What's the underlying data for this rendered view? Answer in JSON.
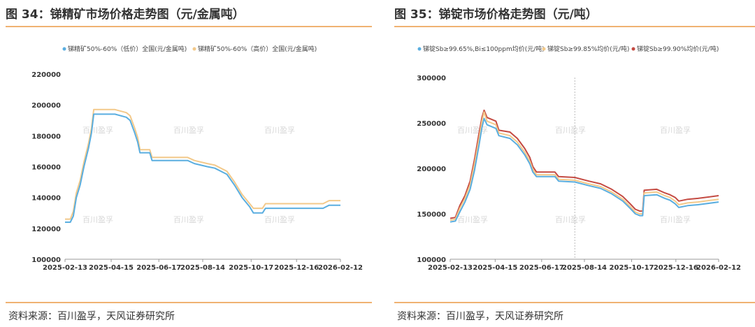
{
  "charts": [
    {
      "title": "图 34：锑精矿市场价格走势图（元/金属吨）",
      "source": "资料来源：百川盈孚，天风证券研究所",
      "watermark": "百川盈孚",
      "chart_data": {
        "type": "line",
        "ylim": [
          100000,
          220000
        ],
        "yticks": [
          "100000",
          "120000",
          "140000",
          "160000",
          "180000",
          "200000",
          "220000"
        ],
        "xlim": [
          "2025-02-13",
          "2026-02-12"
        ],
        "xticks": [
          "2025-02-13",
          "2025-04-15",
          "2025-06-17",
          "2025-08-14",
          "2025-10-17",
          "2025-12-16",
          "2026-02-12"
        ],
        "grid": false,
        "legend_position": "top",
        "series": [
          {
            "name": "锑精矿50%-60%（低价）全国(元/金属吨)",
            "color": "#5aaee0",
            "points": [
              [
                "2025-02-13",
                124000
              ],
              [
                "2025-02-20",
                124000
              ],
              [
                "2025-02-24",
                128000
              ],
              [
                "2025-02-28",
                140000
              ],
              [
                "2025-03-05",
                148000
              ],
              [
                "2025-03-10",
                160000
              ],
              [
                "2025-03-16",
                172000
              ],
              [
                "2025-03-20",
                182000
              ],
              [
                "2025-03-23",
                194000
              ],
              [
                "2025-03-26",
                194000
              ],
              [
                "2025-04-20",
                194000
              ],
              [
                "2025-05-05",
                192000
              ],
              [
                "2025-05-10",
                190000
              ],
              [
                "2025-05-16",
                182000
              ],
              [
                "2025-05-20",
                176000
              ],
              [
                "2025-05-23",
                169000
              ],
              [
                "2025-06-05",
                169000
              ],
              [
                "2025-06-08",
                164000
              ],
              [
                "2025-07-10",
                164000
              ],
              [
                "2025-07-25",
                164000
              ],
              [
                "2025-08-03",
                162000
              ],
              [
                "2025-08-20",
                160000
              ],
              [
                "2025-08-30",
                159000
              ],
              [
                "2025-09-15",
                155000
              ],
              [
                "2025-09-25",
                148000
              ],
              [
                "2025-10-05",
                140000
              ],
              [
                "2025-10-15",
                134000
              ],
              [
                "2025-10-20",
                130000
              ],
              [
                "2025-11-01",
                130000
              ],
              [
                "2025-11-05",
                133000
              ],
              [
                "2025-12-10",
                133000
              ],
              [
                "2025-12-15",
                133000
              ],
              [
                "2026-01-20",
                133000
              ],
              [
                "2026-01-28",
                135000
              ],
              [
                "2026-02-12",
                135000
              ]
            ]
          },
          {
            "name": "锑精矿50%-60%（高价）全国(元/金属吨)",
            "color": "#f3c98a",
            "points": [
              [
                "2025-02-13",
                126000
              ],
              [
                "2025-02-20",
                126000
              ],
              [
                "2025-02-24",
                131000
              ],
              [
                "2025-02-28",
                143000
              ],
              [
                "2025-03-05",
                151000
              ],
              [
                "2025-03-10",
                163000
              ],
              [
                "2025-03-16",
                175000
              ],
              [
                "2025-03-20",
                185000
              ],
              [
                "2025-03-23",
                197000
              ],
              [
                "2025-03-26",
                197000
              ],
              [
                "2025-04-20",
                197000
              ],
              [
                "2025-05-05",
                195000
              ],
              [
                "2025-05-10",
                193000
              ],
              [
                "2025-05-16",
                185000
              ],
              [
                "2025-05-20",
                179000
              ],
              [
                "2025-05-23",
                171000
              ],
              [
                "2025-06-05",
                171000
              ],
              [
                "2025-06-08",
                166000
              ],
              [
                "2025-07-10",
                166000
              ],
              [
                "2025-07-25",
                166000
              ],
              [
                "2025-08-03",
                164000
              ],
              [
                "2025-08-20",
                162000
              ],
              [
                "2025-08-30",
                161000
              ],
              [
                "2025-09-15",
                157000
              ],
              [
                "2025-09-25",
                150000
              ],
              [
                "2025-10-05",
                142000
              ],
              [
                "2025-10-15",
                136000
              ],
              [
                "2025-10-20",
                133000
              ],
              [
                "2025-11-01",
                133000
              ],
              [
                "2025-11-05",
                136000
              ],
              [
                "2025-12-10",
                136000
              ],
              [
                "2025-12-15",
                136000
              ],
              [
                "2026-01-20",
                136000
              ],
              [
                "2026-01-28",
                138000
              ],
              [
                "2026-02-12",
                138000
              ]
            ]
          }
        ]
      }
    },
    {
      "title": "图 35：锑锭市场价格走势图（元/吨）",
      "source": "资料来源：百川盈孚，天风证券研究所",
      "watermark": "百川盈孚",
      "chart_data": {
        "type": "line",
        "ylim": [
          100000,
          300000
        ],
        "yticks": [
          "100000",
          "150000",
          "200000",
          "250000",
          "300000"
        ],
        "xlim": [
          "2025-02-13",
          "2026-02-12"
        ],
        "xticks": [
          "2025-02-13",
          "2025-04-15",
          "2025-06-17",
          "2025-08-14",
          "2025-10-17",
          "2025-12-16",
          "2026-02-12"
        ],
        "grid": false,
        "legend_position": "top",
        "vline": "2025-08-01",
        "series": [
          {
            "name": "锑锭Sb≥99.65%,Bi≤100ppm均价(元/吨)",
            "color": "#5aaee0",
            "points": [
              [
                "2025-02-13",
                141000
              ],
              [
                "2025-02-20",
                142000
              ],
              [
                "2025-02-26",
                152000
              ],
              [
                "2025-03-05",
                163000
              ],
              [
                "2025-03-12",
                177000
              ],
              [
                "2025-03-18",
                198000
              ],
              [
                "2025-03-24",
                225000
              ],
              [
                "2025-03-28",
                245000
              ],
              [
                "2025-03-31",
                255000
              ],
              [
                "2025-04-04",
                248000
              ],
              [
                "2025-04-10",
                246000
              ],
              [
                "2025-04-16",
                244000
              ],
              [
                "2025-04-20",
                236000
              ],
              [
                "2025-05-05",
                233000
              ],
              [
                "2025-05-15",
                226000
              ],
              [
                "2025-05-25",
                215000
              ],
              [
                "2025-06-01",
                205000
              ],
              [
                "2025-06-05",
                196000
              ],
              [
                "2025-06-10",
                191000
              ],
              [
                "2025-07-05",
                191000
              ],
              [
                "2025-07-10",
                186000
              ],
              [
                "2025-08-01",
                185000
              ],
              [
                "2025-08-20",
                181000
              ],
              [
                "2025-09-05",
                178000
              ],
              [
                "2025-09-20",
                172000
              ],
              [
                "2025-10-05",
                164000
              ],
              [
                "2025-10-15",
                156000
              ],
              [
                "2025-10-22",
                150000
              ],
              [
                "2025-10-28",
                148000
              ],
              [
                "2025-11-01",
                148000
              ],
              [
                "2025-11-03",
                170000
              ],
              [
                "2025-11-20",
                171000
              ],
              [
                "2025-12-01",
                167000
              ],
              [
                "2025-12-08",
                165000
              ],
              [
                "2025-12-15",
                161000
              ],
              [
                "2025-12-20",
                157000
              ],
              [
                "2026-01-01",
                159000
              ],
              [
                "2026-01-15",
                160000
              ],
              [
                "2026-02-12",
                163000
              ]
            ]
          },
          {
            "name": "锑锭Sb≥99.85%均价(元/吨)",
            "color": "#f3c98a",
            "points": [
              [
                "2025-02-13",
                143000
              ],
              [
                "2025-02-20",
                144000
              ],
              [
                "2025-02-26",
                156000
              ],
              [
                "2025-03-05",
                167000
              ],
              [
                "2025-03-12",
                182000
              ],
              [
                "2025-03-18",
                205000
              ],
              [
                "2025-03-24",
                232000
              ],
              [
                "2025-03-28",
                252000
              ],
              [
                "2025-03-31",
                262000
              ],
              [
                "2025-04-04",
                252000
              ],
              [
                "2025-04-10",
                250000
              ],
              [
                "2025-04-16",
                248000
              ],
              [
                "2025-04-20",
                239000
              ],
              [
                "2025-05-05",
                236000
              ],
              [
                "2025-05-15",
                229000
              ],
              [
                "2025-05-25",
                218000
              ],
              [
                "2025-06-01",
                208000
              ],
              [
                "2025-06-05",
                199000
              ],
              [
                "2025-06-10",
                193000
              ],
              [
                "2025-07-05",
                193000
              ],
              [
                "2025-07-10",
                188000
              ],
              [
                "2025-08-01",
                187000
              ],
              [
                "2025-08-20",
                183000
              ],
              [
                "2025-09-05",
                180000
              ],
              [
                "2025-09-20",
                174000
              ],
              [
                "2025-10-05",
                166000
              ],
              [
                "2025-10-15",
                158000
              ],
              [
                "2025-10-22",
                152000
              ],
              [
                "2025-10-28",
                150000
              ],
              [
                "2025-11-01",
                150000
              ],
              [
                "2025-11-03",
                173000
              ],
              [
                "2025-11-20",
                174000
              ],
              [
                "2025-12-01",
                170000
              ],
              [
                "2025-12-08",
                168000
              ],
              [
                "2025-12-15",
                164000
              ],
              [
                "2025-12-20",
                160000
              ],
              [
                "2026-01-01",
                162000
              ],
              [
                "2026-01-15",
                163000
              ],
              [
                "2026-02-12",
                166000
              ]
            ]
          },
          {
            "name": "锑锭Sb≥99.90%均价(元/吨)",
            "color": "#c44a42",
            "points": [
              [
                "2025-02-13",
                145000
              ],
              [
                "2025-02-20",
                146000
              ],
              [
                "2025-02-26",
                159000
              ],
              [
                "2025-03-05",
                170000
              ],
              [
                "2025-03-12",
                186000
              ],
              [
                "2025-03-18",
                210000
              ],
              [
                "2025-03-24",
                238000
              ],
              [
                "2025-03-28",
                256000
              ],
              [
                "2025-03-31",
                264000
              ],
              [
                "2025-04-04",
                256000
              ],
              [
                "2025-04-10",
                254000
              ],
              [
                "2025-04-16",
                252000
              ],
              [
                "2025-04-20",
                242000
              ],
              [
                "2025-05-05",
                240000
              ],
              [
                "2025-05-15",
                233000
              ],
              [
                "2025-05-25",
                222000
              ],
              [
                "2025-06-01",
                212000
              ],
              [
                "2025-06-05",
                202000
              ],
              [
                "2025-06-10",
                196000
              ],
              [
                "2025-07-05",
                196000
              ],
              [
                "2025-07-10",
                191000
              ],
              [
                "2025-08-01",
                190000
              ],
              [
                "2025-08-20",
                186000
              ],
              [
                "2025-09-05",
                183000
              ],
              [
                "2025-09-20",
                177000
              ],
              [
                "2025-10-05",
                169000
              ],
              [
                "2025-10-15",
                161000
              ],
              [
                "2025-10-22",
                155000
              ],
              [
                "2025-10-28",
                153000
              ],
              [
                "2025-11-01",
                153000
              ],
              [
                "2025-11-03",
                176000
              ],
              [
                "2025-11-20",
                177000
              ],
              [
                "2025-12-01",
                173000
              ],
              [
                "2025-12-08",
                171000
              ],
              [
                "2025-12-15",
                168000
              ],
              [
                "2025-12-20",
                164000
              ],
              [
                "2026-01-01",
                166000
              ],
              [
                "2026-01-15",
                167000
              ],
              [
                "2026-02-12",
                170000
              ]
            ]
          }
        ]
      }
    }
  ]
}
